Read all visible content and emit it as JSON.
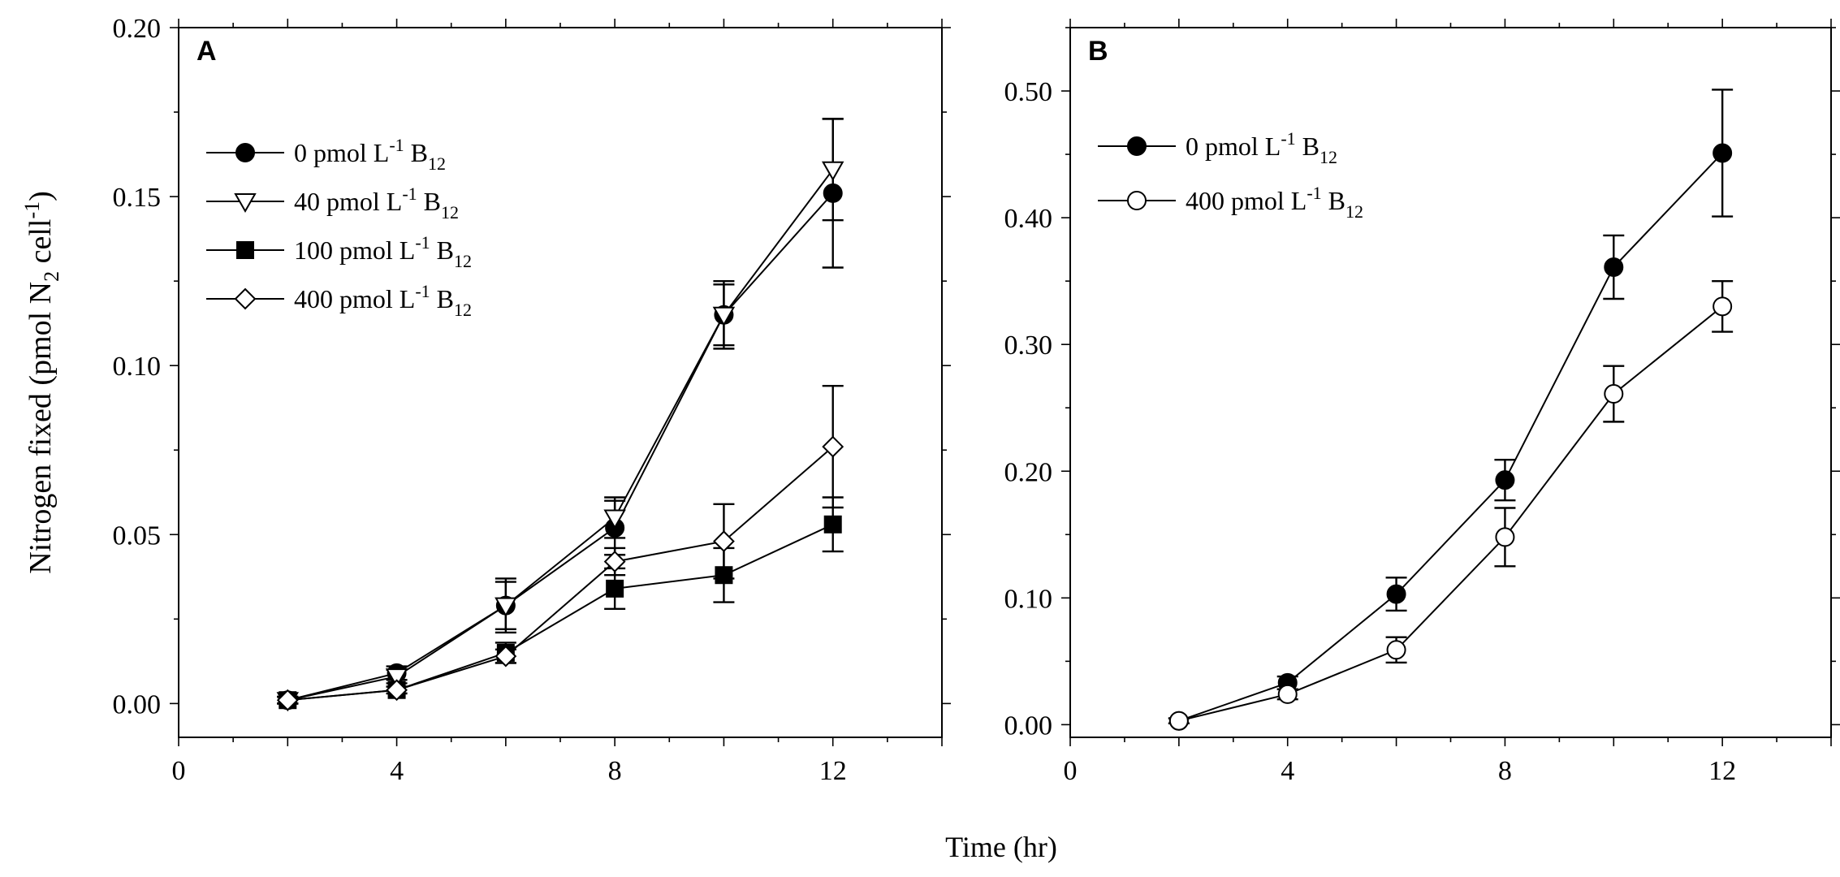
{
  "figure": {
    "shared_xlabel": "Time (hr)"
  },
  "chart_data": [
    {
      "type": "line",
      "panel_label": "A",
      "xlabel": "Time (hr)",
      "ylabel_parts": [
        "Nitrogen fixed (pmol N",
        "2",
        " cell",
        "-1",
        ")"
      ],
      "xlim": [
        0,
        14
      ],
      "ylim": [
        -0.01,
        0.2
      ],
      "xticks": [
        0,
        4,
        8,
        12
      ],
      "xtick_labels": [
        "0",
        "4",
        "8",
        "12"
      ],
      "yticks": [
        0.0,
        0.05,
        0.1,
        0.15,
        0.2
      ],
      "ytick_labels": [
        "0.00",
        "0.05",
        "0.10",
        "0.15",
        "0.20"
      ],
      "legend_position": "top-left",
      "series": [
        {
          "name": "0 pmol L-1 B12",
          "legend": {
            "conc": "0",
            "unit": " pmol L",
            "exp": "-1",
            "b": " B",
            "sub": "12"
          },
          "marker": "circle-filled",
          "x": [
            2,
            4,
            6,
            8,
            10,
            12
          ],
          "y": [
            0.001,
            0.009,
            0.029,
            0.052,
            0.115,
            0.151
          ],
          "err": [
            0.001,
            0.002,
            0.008,
            0.008,
            0.009,
            0.022
          ]
        },
        {
          "name": "40 pmol L-1 B12",
          "legend": {
            "conc": "40",
            "unit": " pmol L",
            "exp": "-1",
            "b": " B",
            "sub": "12"
          },
          "marker": "triangle-down-open",
          "x": [
            2,
            4,
            6,
            8,
            10,
            12
          ],
          "y": [
            0.001,
            0.008,
            0.029,
            0.055,
            0.115,
            0.158
          ],
          "err": [
            0.001,
            0.002,
            0.007,
            0.006,
            0.01,
            0.015
          ]
        },
        {
          "name": "100 pmol L-1 B12",
          "legend": {
            "conc": "100",
            "unit": " pmol L",
            "exp": "-1",
            "b": " B",
            "sub": "12"
          },
          "marker": "square-filled",
          "x": [
            2,
            4,
            6,
            8,
            10,
            12
          ],
          "y": [
            0.001,
            0.004,
            0.015,
            0.034,
            0.038,
            0.053
          ],
          "err": [
            0.001,
            0.001,
            0.003,
            0.006,
            0.008,
            0.008
          ]
        },
        {
          "name": "400 pmol L-1 B12",
          "legend": {
            "conc": "400",
            "unit": " pmol L",
            "exp": "-1",
            "b": " B",
            "sub": "12"
          },
          "marker": "diamond-open",
          "x": [
            2,
            4,
            6,
            8,
            10,
            12
          ],
          "y": [
            0.001,
            0.004,
            0.014,
            0.042,
            0.048,
            0.076
          ],
          "err": [
            0.001,
            0.001,
            0.002,
            0.004,
            0.011,
            0.018
          ]
        }
      ]
    },
    {
      "type": "line",
      "panel_label": "B",
      "xlabel": "Time (hr)",
      "ylabel_parts": [],
      "xlim": [
        0,
        14
      ],
      "ylim": [
        -0.01,
        0.55
      ],
      "xticks": [
        0,
        4,
        8,
        12
      ],
      "xtick_labels": [
        "0",
        "4",
        "8",
        "12"
      ],
      "yticks": [
        0.0,
        0.1,
        0.2,
        0.3,
        0.4,
        0.5
      ],
      "ytick_labels": [
        "0.00",
        "0.10",
        "0.20",
        "0.30",
        "0.40",
        "0.50"
      ],
      "legend_position": "top-left",
      "series": [
        {
          "name": "0 pmol L-1 B12",
          "legend": {
            "conc": "0",
            "unit": " pmol L",
            "exp": "-1",
            "b": " B",
            "sub": "12"
          },
          "marker": "circle-filled",
          "x": [
            2,
            4,
            6,
            8,
            10,
            12
          ],
          "y": [
            0.003,
            0.033,
            0.103,
            0.193,
            0.361,
            0.451
          ],
          "err": [
            0.002,
            0.005,
            0.013,
            0.016,
            0.025,
            0.05
          ]
        },
        {
          "name": "400 pmol L-1 B12",
          "legend": {
            "conc": "400",
            "unit": " pmol L",
            "exp": "-1",
            "b": " B",
            "sub": "12"
          },
          "marker": "circle-open",
          "x": [
            2,
            4,
            6,
            8,
            10,
            12
          ],
          "y": [
            0.003,
            0.024,
            0.059,
            0.148,
            0.261,
            0.33
          ],
          "err": [
            0.002,
            0.004,
            0.01,
            0.023,
            0.022,
            0.02
          ]
        }
      ]
    }
  ]
}
